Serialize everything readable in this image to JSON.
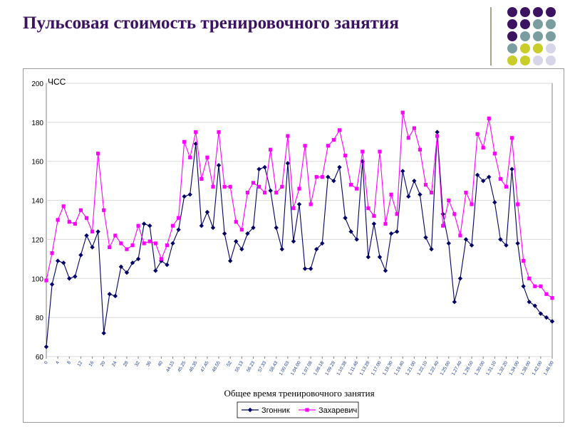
{
  "slide": {
    "title": "Пульсовая стоимость тренировочного занятия"
  },
  "decor": {
    "dot_colors": [
      "#3c1361",
      "#7a9e9f",
      "#c9cd2a",
      "#d6d6e8"
    ]
  },
  "chart_data": {
    "type": "line",
    "ylabel": "ЧСС",
    "xlabel": "Общее время тренировочного занятия",
    "ylim": [
      60,
      200
    ],
    "yticks": [
      60,
      80,
      100,
      120,
      140,
      160,
      180,
      200
    ],
    "grid": true,
    "legend": "bottom-center",
    "x_tick_labels": [
      "0",
      "4",
      "8",
      "12",
      "16",
      "20",
      "24",
      "28",
      "32",
      "36",
      "40",
      "44.15",
      "45.25",
      "46.35",
      "47.45",
      "48.55",
      "52",
      "55.13",
      "56.23",
      "57.33",
      "58.43",
      "1.00.03",
      "1.04.00",
      "1.07.08",
      "1.08.18",
      "1.09.28",
      "1.10.38",
      "1.11.48",
      "1.13.28",
      "1.17.00",
      "1.18.30",
      "1.19.40",
      "1.21.00",
      "1.22.10",
      "1.22.40",
      "1.25.00",
      "1.27.40",
      "1.28.50",
      "1.30.00",
      "1.31.10",
      "1.32.20",
      "1.34.00",
      "1.38.00",
      "1.42.00",
      "1.46.00"
    ],
    "series": [
      {
        "name": "Згонник",
        "color": "#000066",
        "marker": "diamond",
        "values": [
          65,
          97,
          109,
          108,
          100,
          101,
          112,
          122,
          116,
          124,
          72,
          92,
          91,
          106,
          103,
          108,
          110,
          128,
          127,
          104,
          109,
          107,
          118,
          125,
          142,
          143,
          169,
          127,
          134,
          126,
          158,
          123,
          109,
          119,
          115,
          123,
          126,
          156,
          157,
          145,
          126,
          115,
          159,
          119,
          138,
          105,
          105,
          115,
          118,
          152,
          150,
          157,
          131,
          124,
          120,
          160,
          111,
          128,
          111,
          104,
          123,
          124,
          155,
          142,
          150,
          143,
          121,
          115,
          175,
          133,
          118,
          88,
          100,
          120,
          117,
          153,
          150,
          152,
          139,
          120,
          117,
          156,
          118,
          96,
          88,
          86,
          82,
          80,
          78
        ]
      },
      {
        "name": "Захаревич",
        "color": "#ff00ff",
        "marker": "square",
        "values": [
          99,
          113,
          130,
          137,
          129,
          128,
          135,
          131,
          124,
          164,
          135,
          116,
          122,
          118,
          115,
          117,
          127,
          118,
          119,
          118,
          110,
          117,
          127,
          131,
          170,
          162,
          175,
          151,
          162,
          147,
          175,
          147,
          147,
          129,
          125,
          144,
          149,
          147,
          144,
          166,
          144,
          147,
          173,
          136,
          146,
          168,
          138,
          152,
          152,
          168,
          171,
          176,
          163,
          148,
          146,
          165,
          136,
          132,
          165,
          128,
          143,
          133,
          185,
          172,
          177,
          166,
          148,
          144,
          173,
          127,
          140,
          133,
          122,
          144,
          138,
          174,
          167,
          182,
          164,
          151,
          147,
          172,
          138,
          109,
          100,
          96,
          96,
          92,
          90
        ]
      }
    ]
  }
}
